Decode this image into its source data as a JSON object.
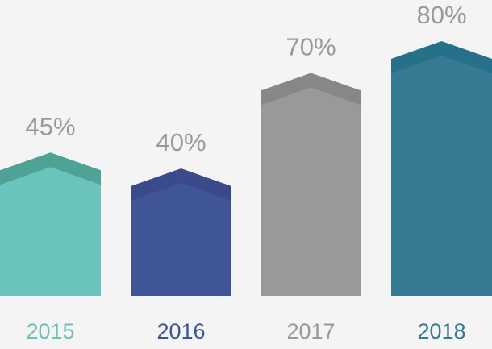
{
  "chart_data": {
    "type": "bar",
    "categories": [
      "2015",
      "2016",
      "2017",
      "2018"
    ],
    "values": [
      45,
      40,
      70,
      80
    ],
    "value_labels": [
      "45%",
      "40%",
      "70%",
      "80%"
    ],
    "colors": [
      "#6bc4bb",
      "#3f5597",
      "#999999",
      "#367a94"
    ],
    "cap_colors": [
      "#4fa396",
      "#3a4a8b",
      "#878787",
      "#27708a"
    ]
  }
}
